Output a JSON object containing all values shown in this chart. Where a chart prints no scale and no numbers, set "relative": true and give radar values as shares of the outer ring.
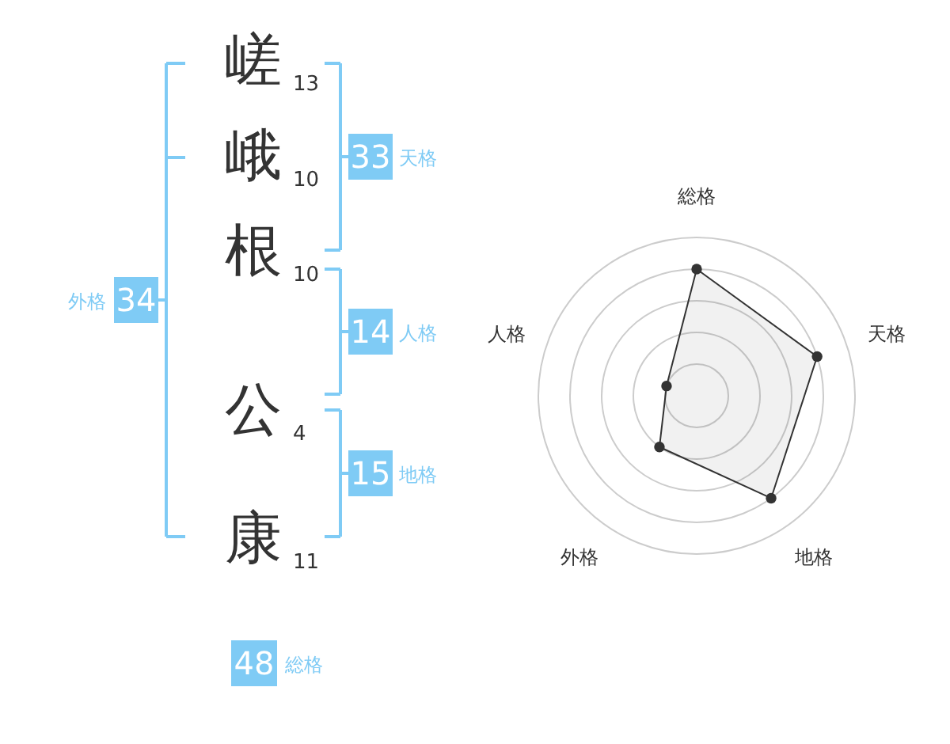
{
  "chart_data": [
    {
      "type": "other",
      "categories": [
        "嵯",
        "峨",
        "根",
        "公",
        "康"
      ],
      "values": [
        13,
        10,
        10,
        4,
        11
      ],
      "data_labels": true,
      "annotations": [
        "天格",
        "人格",
        "地格",
        "外格",
        "総格"
      ],
      "totals": [
        "33",
        "14",
        "15",
        "34",
        "48"
      ]
    },
    {
      "type": "radar",
      "categories": [
        "総格",
        "天格",
        "地格",
        "外格",
        "人格"
      ],
      "relative": true,
      "grid": true,
      "marker": "circle",
      "line_style": "solid",
      "series": [
        {
          "color": "#333333",
          "values": [
            0.8,
            0.8,
            0.8,
            0.4,
            0.2
          ]
        }
      ]
    }
  ]
}
